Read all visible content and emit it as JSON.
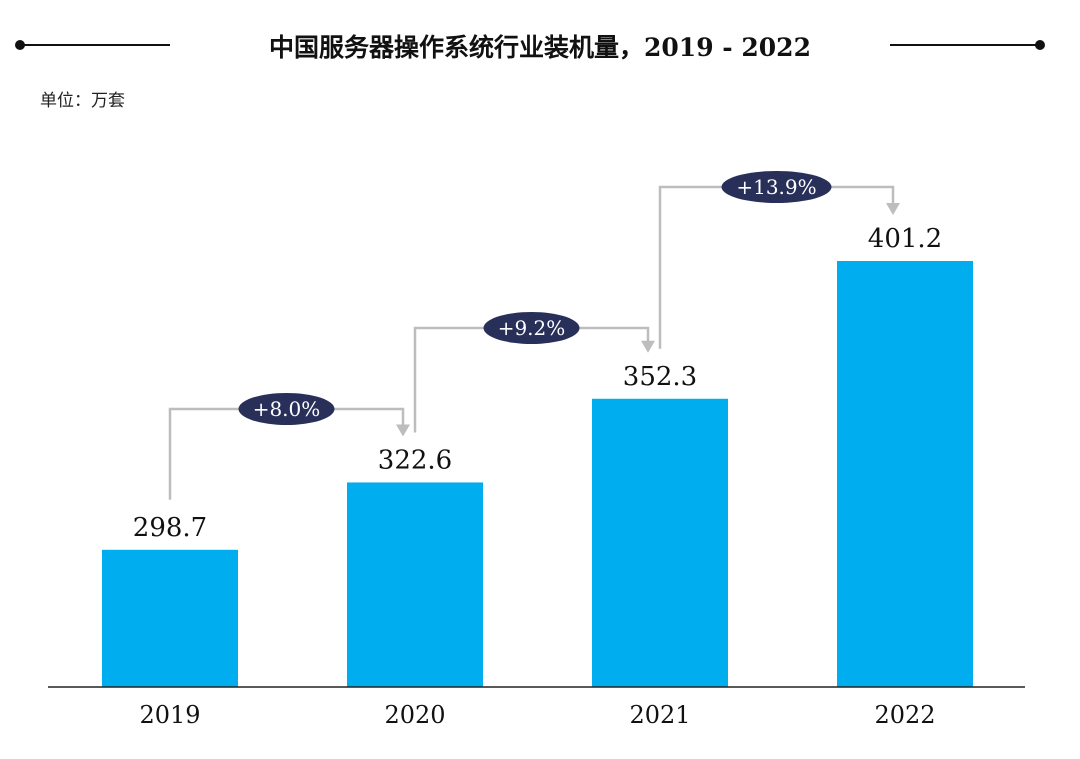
{
  "chart_data": {
    "type": "bar",
    "title": "中国服务器操作系统行业装机量，2019 - 2022",
    "unit_label": "单位：万套",
    "categories": [
      "2019",
      "2020",
      "2021",
      "2022"
    ],
    "values": [
      298.7,
      322.6,
      352.3,
      401.2
    ],
    "value_labels": [
      "298.7",
      "322.6",
      "352.3",
      "401.2"
    ],
    "growth_labels": [
      "+8.0%",
      "+9.2%",
      "+13.9%"
    ],
    "ylim": [
      250,
      420
    ],
    "grid": false,
    "colors": {
      "bar": "#00AEEF",
      "pill": "#28305A",
      "connector": "#BDBDBD"
    }
  }
}
